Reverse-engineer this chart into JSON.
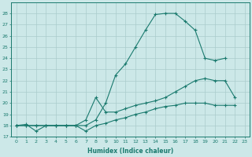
{
  "x": [
    0,
    1,
    2,
    3,
    4,
    5,
    6,
    7,
    8,
    9,
    10,
    11,
    12,
    13,
    14,
    15,
    16,
    17,
    18,
    19,
    20,
    21,
    22,
    23
  ],
  "curve_top": [
    18,
    18.1,
    17.5,
    18,
    18,
    18,
    18,
    18,
    18.5,
    20,
    22.5,
    23.5,
    25,
    26.5,
    27.9,
    28,
    28,
    27.3,
    26.5,
    24.0,
    23.8,
    24,
    null,
    null
  ],
  "curve_mid": [
    18,
    18,
    18,
    18,
    18,
    18,
    18,
    18.5,
    20.5,
    19.2,
    19.2,
    19.5,
    19.8,
    20,
    20.2,
    20.5,
    21,
    21.5,
    22,
    22.2,
    22,
    22,
    20.5,
    null
  ],
  "curve_bot": [
    18,
    18,
    18,
    18,
    18,
    18,
    18,
    17.5,
    18,
    18.2,
    18.5,
    18.7,
    19,
    19.2,
    19.5,
    19.7,
    19.8,
    20,
    20,
    20,
    19.8,
    19.8,
    19.8,
    null
  ],
  "line_color": "#1a7a6e",
  "bg_color": "#cce8e8",
  "grid_color": "#aacccc",
  "xlabel": "Humidex (Indice chaleur)",
  "ylim": [
    17,
    29
  ],
  "xlim": [
    -0.5,
    23.5
  ],
  "yticks": [
    17,
    18,
    19,
    20,
    21,
    22,
    23,
    24,
    25,
    26,
    27,
    28
  ],
  "xticks": [
    0,
    1,
    2,
    3,
    4,
    5,
    6,
    7,
    8,
    9,
    10,
    11,
    12,
    13,
    14,
    15,
    16,
    17,
    18,
    19,
    20,
    21,
    22,
    23
  ]
}
